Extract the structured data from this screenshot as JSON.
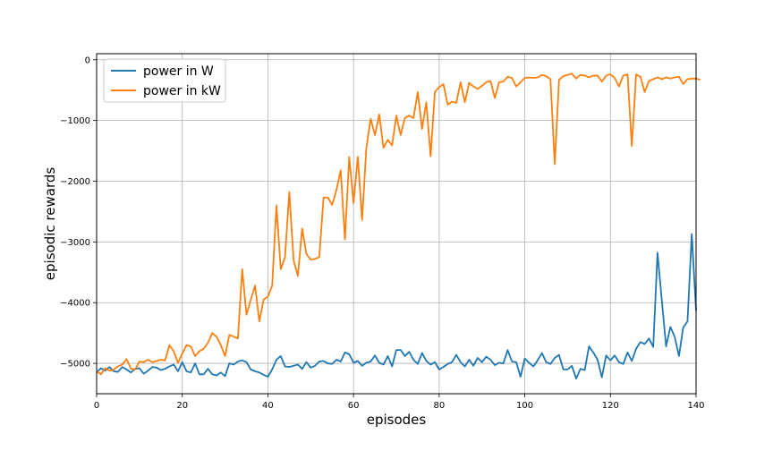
{
  "chart_data": {
    "type": "line",
    "title": "",
    "xlabel": "episodes",
    "ylabel": "episodic rewards",
    "xlim": [
      0,
      140
    ],
    "ylim": [
      -5500,
      100
    ],
    "xticks": [
      0,
      20,
      40,
      60,
      80,
      100,
      120,
      140
    ],
    "yticks": [
      0,
      -1000,
      -2000,
      -3000,
      -4000,
      -5000
    ],
    "xtick_labels": [
      "0",
      "20",
      "40",
      "60",
      "80",
      "100",
      "120",
      "140"
    ],
    "ytick_labels": [
      "0",
      "−1000",
      "−2000",
      "−3000",
      "−4000",
      "−5000"
    ],
    "grid": true,
    "legend_position": "top-left",
    "series": [
      {
        "name": "power in W",
        "color": "#1f77b4",
        "values": [
          -5150,
          -5080,
          -5120,
          -5060,
          -5130,
          -5140,
          -5060,
          -5100,
          -5150,
          -5090,
          -5080,
          -5170,
          -5120,
          -5060,
          -5070,
          -5110,
          -5090,
          -5050,
          -5020,
          -5130,
          -4980,
          -5130,
          -5150,
          -5000,
          -5180,
          -5180,
          -5090,
          -5180,
          -5200,
          -5150,
          -5210,
          -5000,
          -5020,
          -4970,
          -4950,
          -4980,
          -5100,
          -5130,
          -5150,
          -5190,
          -5220,
          -5100,
          -4940,
          -4880,
          -5050,
          -5060,
          -5040,
          -5020,
          -5090,
          -4980,
          -5070,
          -5040,
          -4970,
          -4960,
          -5000,
          -5010,
          -4940,
          -4970,
          -4820,
          -4850,
          -4990,
          -4960,
          -5040,
          -4990,
          -4970,
          -4870,
          -4990,
          -5020,
          -4880,
          -5050,
          -4780,
          -4780,
          -4880,
          -4810,
          -4940,
          -5010,
          -4830,
          -4960,
          -5020,
          -4980,
          -5100,
          -5060,
          -5010,
          -4980,
          -4860,
          -4980,
          -5050,
          -4940,
          -5040,
          -4910,
          -4980,
          -4890,
          -4940,
          -5030,
          -4990,
          -5000,
          -4780,
          -4970,
          -4980,
          -5220,
          -4920,
          -4990,
          -5050,
          -4950,
          -4830,
          -4980,
          -5010,
          -4910,
          -4860,
          -5100,
          -5100,
          -5040,
          -5250,
          -5090,
          -5110,
          -4720,
          -4820,
          -4940,
          -5230,
          -4870,
          -4950,
          -4870,
          -4980,
          -5010,
          -4820,
          -4960,
          -4760,
          -4650,
          -4680,
          -4590,
          -4730,
          -3180,
          -3960,
          -4720,
          -4400,
          -4560,
          -4880,
          -4410,
          -4310,
          -2870,
          -4130
        ]
      },
      {
        "name": "power in kW",
        "color": "#ff7f0e",
        "values": [
          -5130,
          -5180,
          -5080,
          -5120,
          -5100,
          -5050,
          -5020,
          -4930,
          -5090,
          -5100,
          -4970,
          -4980,
          -4940,
          -4980,
          -4960,
          -4940,
          -4950,
          -4700,
          -4800,
          -4990,
          -4840,
          -4700,
          -4720,
          -4880,
          -4800,
          -4760,
          -4660,
          -4500,
          -4560,
          -4700,
          -4880,
          -4530,
          -4560,
          -4590,
          -3450,
          -4200,
          -3950,
          -3720,
          -4310,
          -3950,
          -3900,
          -3720,
          -2400,
          -3450,
          -3250,
          -2180,
          -3300,
          -3560,
          -2780,
          -3200,
          -3290,
          -3280,
          -3250,
          -2270,
          -2270,
          -2390,
          -2150,
          -1820,
          -2960,
          -1600,
          -2360,
          -1600,
          -2640,
          -1450,
          -970,
          -1240,
          -900,
          -1450,
          -1320,
          -1410,
          -920,
          -1240,
          -960,
          -920,
          -960,
          -530,
          -1140,
          -700,
          -1590,
          -530,
          -450,
          -400,
          -740,
          -690,
          -710,
          -370,
          -700,
          -380,
          -440,
          -480,
          -430,
          -370,
          -350,
          -630,
          -370,
          -360,
          -280,
          -300,
          -440,
          -370,
          -300,
          -290,
          -300,
          -290,
          -250,
          -270,
          -320,
          -1720,
          -330,
          -270,
          -250,
          -230,
          -310,
          -250,
          -260,
          -290,
          -260,
          -260,
          -360,
          -260,
          -240,
          -300,
          -440,
          -260,
          -240,
          -1420,
          -240,
          -280,
          -530,
          -350,
          -320,
          -290,
          -320,
          -290,
          -310,
          -290,
          -280,
          -400,
          -320,
          -310,
          -310,
          -330
        ]
      }
    ]
  }
}
